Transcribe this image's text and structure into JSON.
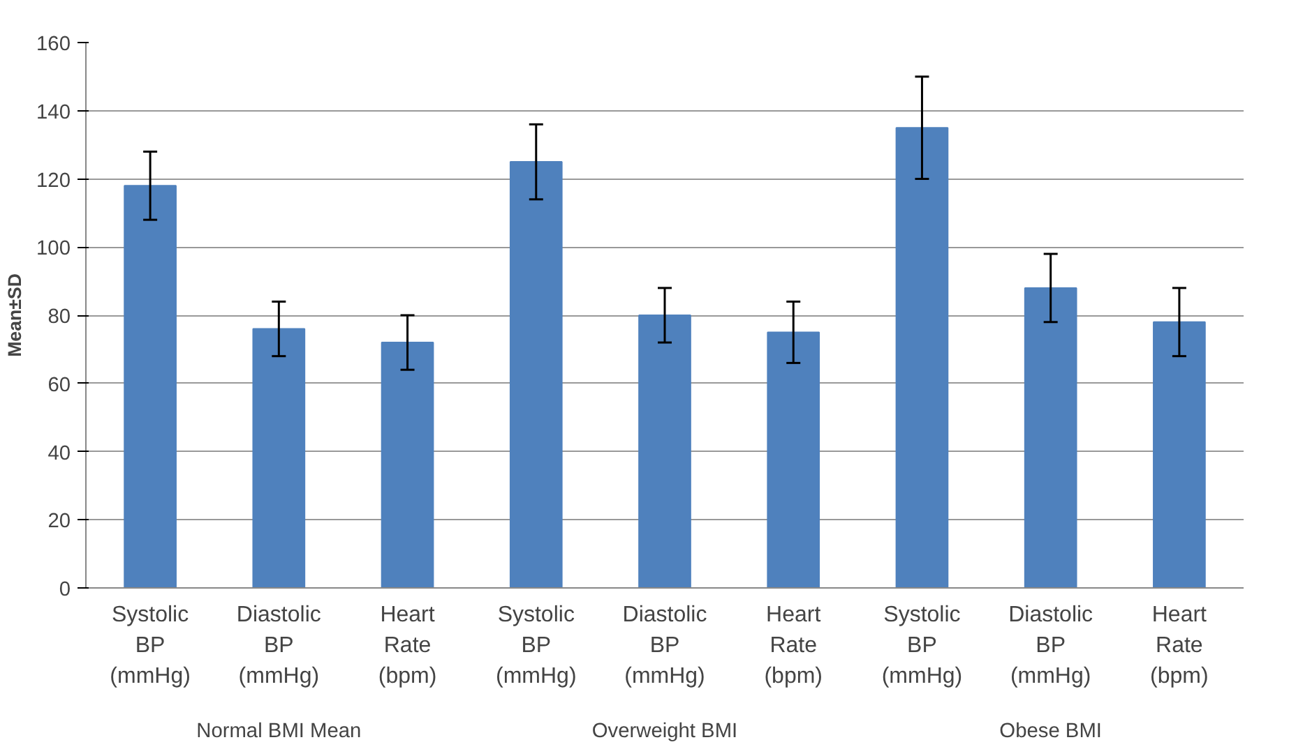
{
  "chart_data": {
    "type": "bar",
    "ylabel": "Mean±SD",
    "categories": [
      "Systolic BP (mmHg)",
      "Diastolic BP (mmHg)",
      "Heart Rate (bpm)",
      "Systolic BP (mmHg)",
      "Diastolic BP (mmHg)",
      "Heart Rate (bpm)",
      "Systolic BP (mmHg)",
      "Diastolic BP (mmHg)",
      "Heart Rate (bpm)"
    ],
    "values": [
      118,
      76,
      72,
      125,
      80,
      75,
      135,
      88,
      78
    ],
    "errors": [
      10,
      8,
      8,
      11,
      8,
      9,
      15,
      10,
      10
    ],
    "color": "#4f81bd",
    "annotations": [
      "Normal BMI Mean",
      "Overweight BMI",
      "Obese BMI"
    ],
    "ylim": [
      0,
      160
    ],
    "yticks": [
      0,
      20,
      40,
      60,
      80,
      100,
      120,
      140,
      160
    ],
    "grid": "y"
  }
}
